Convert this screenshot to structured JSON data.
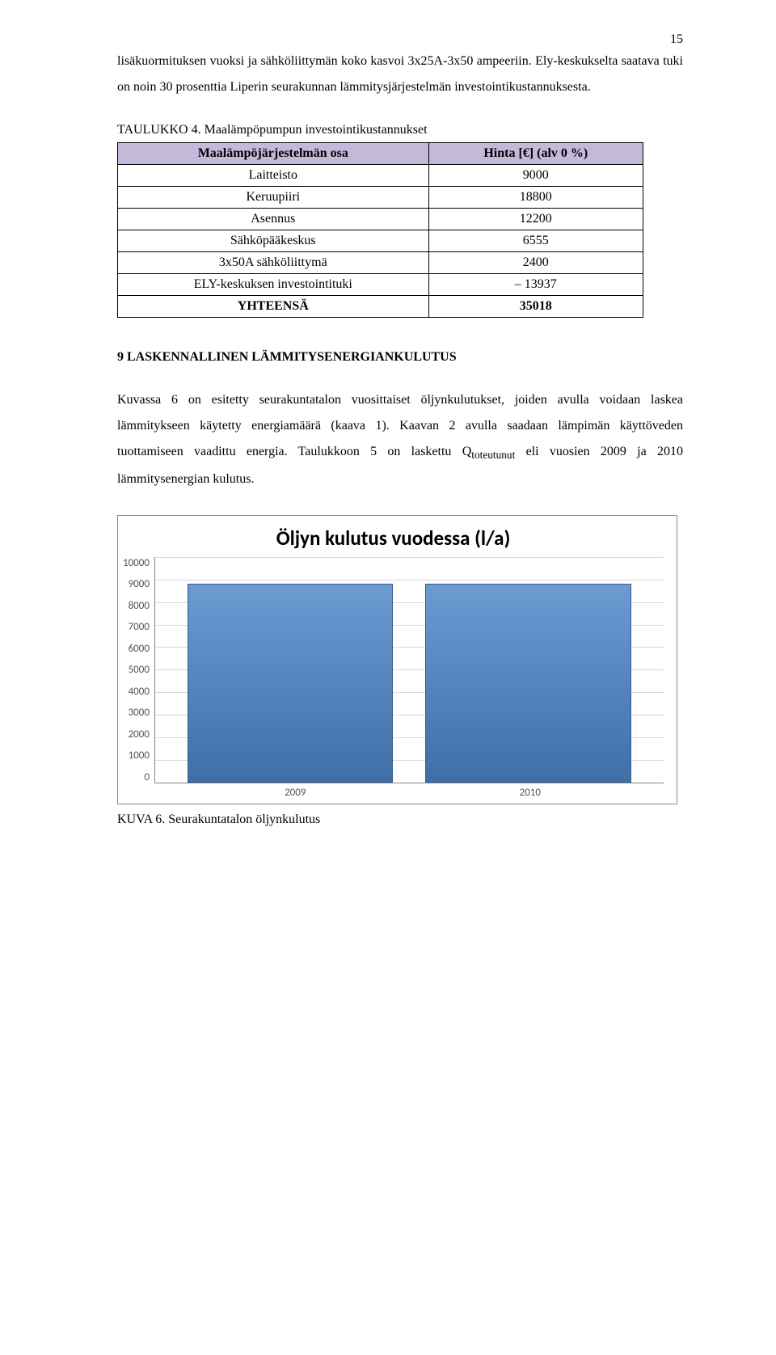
{
  "page_number": "15",
  "paragraph1": "lisäkuormituksen vuoksi ja sähköliittymän koko kasvoi 3x25A-3x50 ampeeriin. Ely-keskukselta saatava tuki on noin 30 prosenttia Liperin seurakunnan lämmitysjärjestelmän investointikustannuksesta.",
  "table": {
    "caption": "TAULUKKO 4. Maalämpöpumpun investointikustannukset",
    "header_col1": "Maalämpöjärjestelmän osa",
    "header_col2": "Hinta [€] (alv 0 %)",
    "header_bg": "#c5b9da",
    "rows": [
      {
        "label": "Laitteisto",
        "value": "9000"
      },
      {
        "label": "Keruupiiri",
        "value": "18800"
      },
      {
        "label": "Asennus",
        "value": "12200"
      },
      {
        "label": "Sähköpääkeskus",
        "value": "6555"
      },
      {
        "label": "3x50A sähköliittymä",
        "value": "2400"
      },
      {
        "label": "ELY-keskuksen investointituki",
        "value": "– 13937"
      },
      {
        "label": "YHTEENSÄ",
        "value": "35018",
        "bold": true
      }
    ]
  },
  "section_heading": "9  LASKENNALLINEN LÄMMITYSENERGIANKULUTUS",
  "paragraph2_part1": "Kuvassa 6 on esitetty seurakuntatalon vuosittaiset öljynkulutukset, joiden avulla voidaan laskea lämmitykseen käytetty energiamäärä (kaava 1). Kaavan 2 avulla saadaan lämpimän käyttöveden tuottamiseen vaadittu energia. Taulukkoon 5 on laskettu Q",
  "paragraph2_sub": "toteutunut",
  "paragraph2_part2": " eli vuosien 2009 ja 2010 lämmitysenergian kulutus.",
  "chart": {
    "type": "bar",
    "title": "Öljyn kulutus vuodessa (l/a)",
    "categories": [
      "2009",
      "2010"
    ],
    "values": [
      8800,
      8800
    ],
    "ylim_max": 10000,
    "ytick_step": 1000,
    "y_ticks": [
      "10000",
      "9000",
      "8000",
      "7000",
      "6000",
      "5000",
      "4000",
      "3000",
      "2000",
      "1000",
      "0"
    ],
    "bar_color_top": "#6b9bd1",
    "bar_color_bottom": "#3f6fa8",
    "grid_color": "#d9d9d9",
    "axis_color": "#888888",
    "background": "#ffffff"
  },
  "figure_caption": "KUVA 6. Seurakuntatalon öljynkulutus"
}
